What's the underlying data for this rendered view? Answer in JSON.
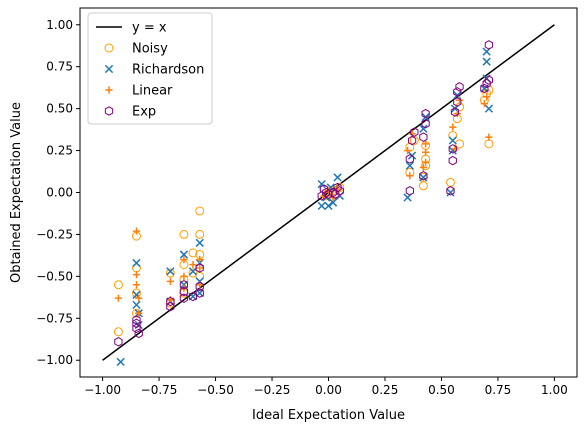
{
  "chart_data": {
    "type": "scatter",
    "title": "",
    "xlabel": "Ideal Expectation Value",
    "ylabel": "Obtained Expectation Value",
    "xlim": [
      -1.1,
      1.1
    ],
    "ylim": [
      -1.1,
      1.1
    ],
    "xticks": [
      "−1.00",
      "−0.75",
      "−0.50",
      "−0.25",
      "0.00",
      "0.25",
      "0.50",
      "0.75",
      "1.00"
    ],
    "yticks": [
      "−1.00",
      "−0.75",
      "−0.50",
      "−0.25",
      "0.00",
      "0.25",
      "0.50",
      "0.75",
      "1.00"
    ],
    "grid": false,
    "legend_position": "top-left",
    "reference_line": {
      "name": "y = x",
      "color": "#000000",
      "from": [
        -1.0,
        -1.0
      ],
      "to": [
        1.0,
        1.0
      ]
    },
    "series": [
      {
        "name": "Noisy",
        "marker": "circle",
        "color": "#ff9f00",
        "points": [
          [
            -0.93,
            -0.55
          ],
          [
            -0.93,
            -0.83
          ],
          [
            -0.85,
            -0.26
          ],
          [
            -0.85,
            -0.45
          ],
          [
            -0.85,
            -0.6
          ],
          [
            -0.85,
            -0.72
          ],
          [
            -0.7,
            -0.48
          ],
          [
            -0.7,
            -0.66
          ],
          [
            -0.64,
            -0.25
          ],
          [
            -0.64,
            -0.43
          ],
          [
            -0.64,
            -0.52
          ],
          [
            -0.64,
            -0.6
          ],
          [
            -0.6,
            -0.36
          ],
          [
            -0.6,
            -0.48
          ],
          [
            -0.57,
            -0.11
          ],
          [
            -0.57,
            -0.25
          ],
          [
            -0.57,
            -0.37
          ],
          [
            -0.57,
            -0.5
          ],
          [
            -0.02,
            0.02
          ],
          [
            -0.01,
            -0.02
          ],
          [
            0.0,
            0.0
          ],
          [
            0.02,
            0.01
          ],
          [
            0.03,
            -0.02
          ],
          [
            0.05,
            0.03
          ],
          [
            0.36,
            0.12
          ],
          [
            0.36,
            0.27
          ],
          [
            0.38,
            0.31
          ],
          [
            0.42,
            0.04
          ],
          [
            0.42,
            0.09
          ],
          [
            0.43,
            0.16
          ],
          [
            0.43,
            0.2
          ],
          [
            0.43,
            0.28
          ],
          [
            0.54,
            0.06
          ],
          [
            0.55,
            0.34
          ],
          [
            0.57,
            0.44
          ],
          [
            0.58,
            0.29
          ],
          [
            0.58,
            0.51
          ],
          [
            0.69,
            0.55
          ],
          [
            0.7,
            0.59
          ],
          [
            0.71,
            0.29
          ],
          [
            0.71,
            0.61
          ]
        ]
      },
      {
        "name": "Richardson",
        "marker": "x",
        "color": "#1f77b4",
        "points": [
          [
            -0.92,
            -1.01
          ],
          [
            -0.85,
            -0.42
          ],
          [
            -0.85,
            -0.61
          ],
          [
            -0.85,
            -0.67
          ],
          [
            -0.84,
            -0.72
          ],
          [
            -0.84,
            -0.79
          ],
          [
            -0.7,
            -0.47
          ],
          [
            -0.7,
            -0.65
          ],
          [
            -0.64,
            -0.37
          ],
          [
            -0.64,
            -0.55
          ],
          [
            -0.6,
            -0.47
          ],
          [
            -0.6,
            -0.62
          ],
          [
            -0.57,
            -0.3
          ],
          [
            -0.57,
            -0.42
          ],
          [
            -0.57,
            -0.53
          ],
          [
            -0.57,
            -0.6
          ],
          [
            -0.03,
            0.05
          ],
          [
            -0.03,
            -0.08
          ],
          [
            -0.01,
            -0.03
          ],
          [
            0.0,
            -0.08
          ],
          [
            0.01,
            0.03
          ],
          [
            0.02,
            -0.06
          ],
          [
            0.04,
            0.09
          ],
          [
            0.05,
            -0.02
          ],
          [
            0.35,
            -0.03
          ],
          [
            0.36,
            0.16
          ],
          [
            0.37,
            0.22
          ],
          [
            0.42,
            0.09
          ],
          [
            0.42,
            0.38
          ],
          [
            0.43,
            0.45
          ],
          [
            0.54,
            0.0
          ],
          [
            0.55,
            0.25
          ],
          [
            0.55,
            0.31
          ],
          [
            0.56,
            0.5
          ],
          [
            0.57,
            0.58
          ],
          [
            0.69,
            0.62
          ],
          [
            0.7,
            0.68
          ],
          [
            0.7,
            0.78
          ],
          [
            0.7,
            0.84
          ],
          [
            0.71,
            0.5
          ]
        ]
      },
      {
        "name": "Linear",
        "marker": "plus",
        "color": "#ff7f0e",
        "points": [
          [
            -0.93,
            -0.63
          ],
          [
            -0.85,
            -0.23
          ],
          [
            -0.85,
            -0.49
          ],
          [
            -0.85,
            -0.55
          ],
          [
            -0.84,
            -0.63
          ],
          [
            -0.84,
            -0.72
          ],
          [
            -0.7,
            -0.53
          ],
          [
            -0.7,
            -0.64
          ],
          [
            -0.64,
            -0.4
          ],
          [
            -0.64,
            -0.5
          ],
          [
            -0.64,
            -0.57
          ],
          [
            -0.6,
            -0.43
          ],
          [
            -0.57,
            -0.4
          ],
          [
            -0.57,
            -0.45
          ],
          [
            -0.57,
            -0.55
          ],
          [
            -0.02,
            -0.02
          ],
          [
            0.0,
            0.01
          ],
          [
            0.02,
            -0.03
          ],
          [
            0.04,
            0.02
          ],
          [
            0.35,
            0.25
          ],
          [
            0.36,
            0.1
          ],
          [
            0.37,
            0.35
          ],
          [
            0.42,
            0.15
          ],
          [
            0.43,
            0.18
          ],
          [
            0.43,
            0.24
          ],
          [
            0.43,
            0.29
          ],
          [
            0.55,
            0.39
          ],
          [
            0.56,
            0.26
          ],
          [
            0.57,
            0.47
          ],
          [
            0.58,
            0.55
          ],
          [
            0.69,
            0.53
          ],
          [
            0.7,
            0.57
          ],
          [
            0.71,
            0.33
          ]
        ]
      },
      {
        "name": "Exp",
        "marker": "hexagon",
        "color": "#800080",
        "points": [
          [
            -0.93,
            -0.89
          ],
          [
            -0.85,
            -0.76
          ],
          [
            -0.85,
            -0.78
          ],
          [
            -0.85,
            -0.81
          ],
          [
            -0.84,
            -0.84
          ],
          [
            -0.7,
            -0.65
          ],
          [
            -0.7,
            -0.68
          ],
          [
            -0.64,
            -0.55
          ],
          [
            -0.64,
            -0.59
          ],
          [
            -0.64,
            -0.63
          ],
          [
            -0.6,
            -0.62
          ],
          [
            -0.57,
            -0.45
          ],
          [
            -0.57,
            -0.56
          ],
          [
            -0.57,
            -0.6
          ],
          [
            -0.03,
            -0.02
          ],
          [
            -0.02,
            0.02
          ],
          [
            -0.01,
            0.0
          ],
          [
            0.0,
            -0.01
          ],
          [
            0.02,
            0.0
          ],
          [
            0.03,
            -0.01
          ],
          [
            0.04,
            0.03
          ],
          [
            0.05,
            0.01
          ],
          [
            0.36,
            0.01
          ],
          [
            0.36,
            0.2
          ],
          [
            0.37,
            0.31
          ],
          [
            0.38,
            0.36
          ],
          [
            0.42,
            0.1
          ],
          [
            0.42,
            0.33
          ],
          [
            0.43,
            0.41
          ],
          [
            0.43,
            0.47
          ],
          [
            0.54,
            0.01
          ],
          [
            0.55,
            0.19
          ],
          [
            0.55,
            0.26
          ],
          [
            0.56,
            0.48
          ],
          [
            0.57,
            0.54
          ],
          [
            0.57,
            0.6
          ],
          [
            0.58,
            0.63
          ],
          [
            0.69,
            0.62
          ],
          [
            0.7,
            0.65
          ],
          [
            0.71,
            0.67
          ],
          [
            0.71,
            0.88
          ]
        ]
      }
    ]
  }
}
